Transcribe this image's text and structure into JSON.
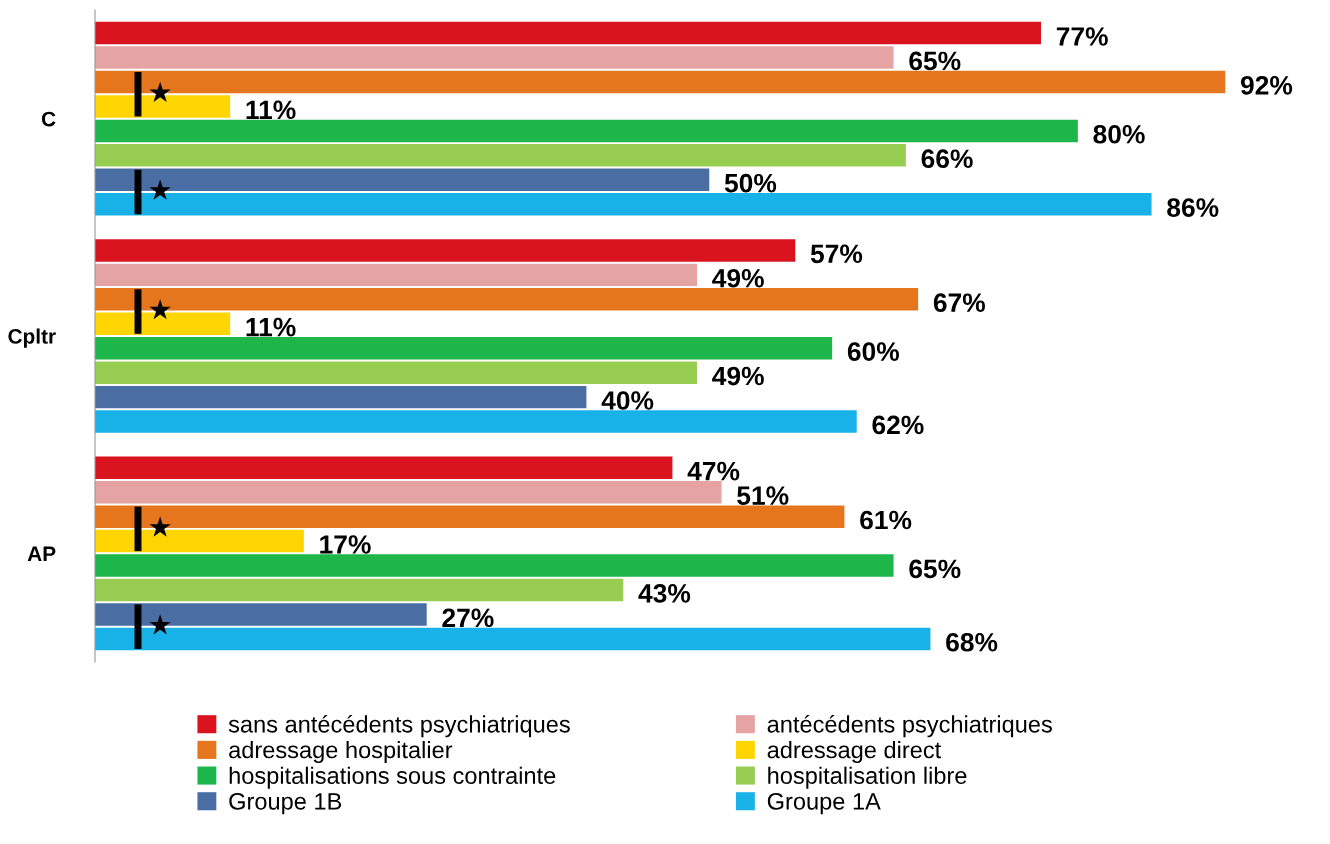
{
  "chart_data": {
    "type": "bar",
    "orientation": "horizontal",
    "categories": [
      "C",
      "Cpltr",
      "AP"
    ],
    "series": [
      {
        "name": "sans antécédents psychiatriques",
        "color": "#d9141e",
        "values": [
          77,
          57,
          47
        ],
        "value_labels": [
          "77%",
          "57%",
          "47%"
        ]
      },
      {
        "name": "antécédents psychiatriques",
        "color": "#e6a3a3",
        "values": [
          65,
          49,
          51
        ],
        "value_labels": [
          "65%",
          "49%",
          "51%"
        ]
      },
      {
        "name": "adressage hospitalier",
        "color": "#e5761e",
        "values": [
          92,
          67,
          61
        ],
        "value_labels": [
          "92%",
          "67%",
          "61%"
        ]
      },
      {
        "name": "adressage direct",
        "color": "#ffd500",
        "values": [
          11,
          11,
          17
        ],
        "value_labels": [
          "11%",
          "11%",
          "17%"
        ]
      },
      {
        "name": "hospitalisations sous contrainte",
        "color": "#1db64a",
        "values": [
          80,
          60,
          65
        ],
        "value_labels": [
          "80%",
          "60%",
          "65%"
        ]
      },
      {
        "name": "hospitalisation libre",
        "color": "#97cd50",
        "values": [
          66,
          49,
          43
        ],
        "value_labels": [
          "66%",
          "49%",
          "43%"
        ]
      },
      {
        "name": "Groupe 1B",
        "color": "#4a6ea3",
        "values": [
          50,
          40,
          27
        ],
        "value_labels": [
          "50%",
          "40%",
          "27%"
        ]
      },
      {
        "name": "Groupe 1A",
        "color": "#19b2e8",
        "values": [
          86,
          62,
          68
        ],
        "value_labels": [
          "86%",
          "62%",
          "68%"
        ]
      }
    ],
    "legend": "bottom",
    "grid": false,
    "annotations": [
      "★",
      "★",
      "★",
      "★",
      "★"
    ]
  }
}
